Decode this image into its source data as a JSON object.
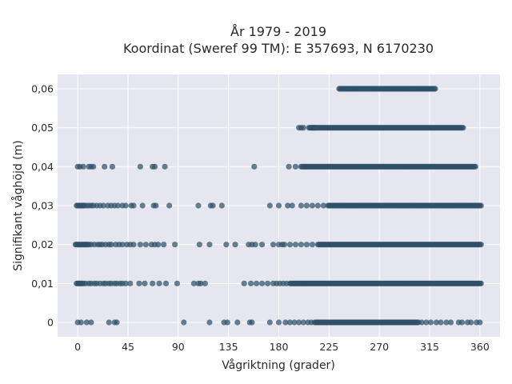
{
  "chart_data": {
    "type": "scatter",
    "title_lines": [
      "År 1979 - 2019",
      "Koordinat (Sweref 99 TM): E 357693, N 6170230"
    ],
    "xlabel": "Vågriktning (grader)",
    "ylabel": "Signifikant våghöjd (m)",
    "xlim": [
      -18,
      378
    ],
    "ylim": [
      -0.0037,
      0.0637
    ],
    "xticks": [
      0,
      45,
      90,
      135,
      180,
      225,
      270,
      315,
      360
    ],
    "xtick_labels": [
      "0",
      "45",
      "90",
      "135",
      "180",
      "225",
      "270",
      "315",
      "360"
    ],
    "yticks": [
      0,
      0.01,
      0.02,
      0.03,
      0.04,
      0.05,
      0.06
    ],
    "ytick_labels": [
      "0",
      "0,01",
      "0,02",
      "0,03",
      "0,04",
      "0,05",
      "0,06"
    ],
    "grid": true,
    "plot_background": "#e5e6f0",
    "marker_color": "#2f5168",
    "points": [
      {
        "y": 0.06,
        "ranges": [
          [
            234,
            320
          ]
        ],
        "isolated": []
      },
      {
        "y": 0.05,
        "ranges": [
          [
            207,
            345
          ]
        ],
        "isolated": [
          198,
          200,
          202,
          210,
          212
        ]
      },
      {
        "y": 0.04,
        "ranges": [
          [
            200,
            356
          ]
        ],
        "isolated": [
          0,
          2,
          5,
          10,
          12,
          14,
          24,
          31,
          56,
          67,
          69,
          78,
          158,
          189,
          195
        ]
      },
      {
        "y": 0.03,
        "ranges": [
          [
            -1,
            6
          ],
          [
            224,
            361
          ]
        ],
        "isolated": [
          8,
          10,
          12,
          14,
          17,
          20,
          23,
          27,
          30,
          33,
          36,
          40,
          43,
          48,
          50,
          58,
          68,
          70,
          82,
          108,
          119,
          121,
          129,
          172,
          180,
          188,
          192,
          200,
          205,
          210,
          215,
          220
        ]
      },
      {
        "y": 0.02,
        "ranges": [
          [
            -2,
            10
          ],
          [
            215,
            361
          ]
        ],
        "isolated": [
          12,
          15,
          18,
          20,
          22,
          25,
          28,
          30,
          34,
          37,
          40,
          44,
          47,
          50,
          56,
          61,
          66,
          69,
          72,
          77,
          87,
          109,
          118,
          133,
          141,
          153,
          156,
          159,
          165,
          175,
          180,
          183,
          185,
          190,
          195,
          200,
          205,
          210
        ]
      },
      {
        "y": 0.01,
        "ranges": [
          [
            -1,
            5
          ],
          [
            190,
            361
          ]
        ],
        "isolated": [
          7,
          10,
          12,
          15,
          17,
          20,
          23,
          25,
          28,
          30,
          33,
          35,
          38,
          40,
          43,
          47,
          55,
          60,
          67,
          73,
          79,
          89,
          104,
          108,
          110,
          114,
          149,
          155,
          160,
          165,
          170,
          175,
          178,
          181,
          184,
          187
        ]
      },
      {
        "y": 0,
        "ranges": [
          [
            212,
            305
          ]
        ],
        "isolated": [
          0,
          3,
          8,
          12,
          28,
          33,
          35,
          95,
          118,
          131,
          134,
          143,
          154,
          156,
          172,
          180,
          186,
          190,
          194,
          198,
          202,
          206,
          209,
          308,
          312,
          316,
          321,
          325,
          330,
          334,
          341,
          344,
          349,
          352,
          357,
          360
        ]
      }
    ]
  }
}
